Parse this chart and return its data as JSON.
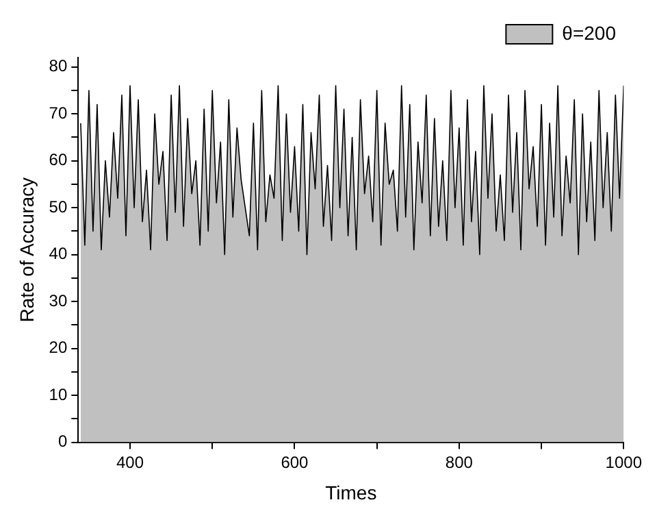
{
  "chart_data": {
    "type": "area",
    "xlabel": "Times",
    "ylabel": "Rate of Accuracy",
    "x": [
      340,
      345,
      350,
      355,
      360,
      365,
      370,
      375,
      380,
      385,
      390,
      395,
      400,
      405,
      410,
      415,
      420,
      425,
      430,
      435,
      440,
      445,
      450,
      455,
      460,
      465,
      470,
      475,
      480,
      485,
      490,
      495,
      500,
      505,
      510,
      515,
      520,
      525,
      530,
      535,
      540,
      545,
      550,
      555,
      560,
      565,
      570,
      575,
      580,
      585,
      590,
      595,
      600,
      605,
      610,
      615,
      620,
      625,
      630,
      635,
      640,
      645,
      650,
      655,
      660,
      665,
      670,
      675,
      680,
      685,
      690,
      695,
      700,
      705,
      710,
      715,
      720,
      725,
      730,
      735,
      740,
      745,
      750,
      755,
      760,
      765,
      770,
      775,
      780,
      785,
      790,
      795,
      800,
      805,
      810,
      815,
      820,
      825,
      830,
      835,
      840,
      845,
      850,
      855,
      860,
      865,
      870,
      875,
      880,
      885,
      890,
      895,
      900,
      905,
      910,
      915,
      920,
      925,
      930,
      935,
      940,
      945,
      950,
      955,
      960,
      965,
      970,
      975,
      980,
      985,
      990,
      995,
      1000
    ],
    "series": [
      {
        "name": "θ=200",
        "color": "#c0c0c0",
        "values": [
          68,
          42,
          75,
          45,
          72,
          41,
          60,
          48,
          66,
          52,
          74,
          44,
          76,
          50,
          73,
          47,
          58,
          41,
          70,
          55,
          62,
          43,
          74,
          49,
          76,
          46,
          69,
          53,
          60,
          42,
          71,
          45,
          75,
          51,
          64,
          40,
          73,
          48,
          67,
          56,
          50,
          44,
          68,
          41,
          75,
          47,
          57,
          52,
          76,
          43,
          70,
          49,
          63,
          45,
          72,
          40,
          66,
          54,
          74,
          46,
          59,
          43,
          76,
          50,
          71,
          44,
          65,
          41,
          73,
          53,
          61,
          47,
          75,
          42,
          68,
          55,
          58,
          45,
          76,
          48,
          72,
          41,
          64,
          51,
          74,
          44,
          69,
          46,
          60,
          43,
          75,
          50,
          67,
          42,
          73,
          47,
          62,
          40,
          76,
          52,
          70,
          45,
          57,
          43,
          74,
          49,
          66,
          41,
          75,
          54,
          63,
          46,
          72,
          42,
          68,
          48,
          76,
          44,
          61,
          51,
          73,
          40,
          70,
          47,
          64,
          43,
          75,
          50,
          66,
          45,
          74,
          52,
          76
        ]
      }
    ],
    "xlim": [
      337,
      1000
    ],
    "xticks": [
      400,
      {
        "value": 500,
        "label": null
      },
      600,
      {
        "value": 700,
        "label": null
      },
      800,
      {
        "value": 900,
        "label": null
      },
      1000
    ],
    "ylim": [
      0,
      82
    ],
    "yticks": [
      0,
      {
        "value": 5,
        "label": null
      },
      10,
      {
        "value": 15,
        "label": null
      },
      20,
      {
        "value": 25,
        "label": null
      },
      30,
      {
        "value": 35,
        "label": null
      },
      40,
      {
        "value": 45,
        "label": null
      },
      50,
      {
        "value": 55,
        "label": null
      },
      60,
      {
        "value": 65,
        "label": null
      },
      70,
      {
        "value": 75,
        "label": null
      },
      80
    ],
    "grid": false,
    "legend": "top right",
    "marker": "none",
    "line_style": "solid"
  }
}
